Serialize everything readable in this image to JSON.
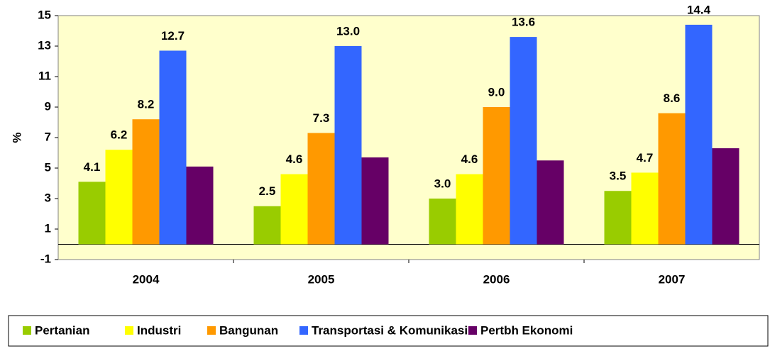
{
  "chart_data": {
    "type": "bar",
    "y_label": "%",
    "categories": [
      "2004",
      "2005",
      "2006",
      "2007"
    ],
    "series": [
      {
        "name": "Pertanian",
        "color": "#99cc00",
        "values": [
          4.1,
          2.5,
          3.0,
          3.5
        ],
        "value_labels": [
          "4.1",
          "2.5",
          "3.0",
          "3.5"
        ]
      },
      {
        "name": "Industri",
        "color": "#ffff00",
        "values": [
          6.2,
          4.6,
          4.6,
          4.7
        ],
        "value_labels": [
          "6.2",
          "4.6",
          "4.6",
          "4.7"
        ]
      },
      {
        "name": "Bangunan",
        "color": "#ff9900",
        "values": [
          8.2,
          7.3,
          9.0,
          8.6
        ],
        "value_labels": [
          "8.2",
          "7.3",
          "9.0",
          "8.6"
        ]
      },
      {
        "name": "Transportasi & Komunikasi",
        "color": "#3366ff",
        "values": [
          12.7,
          13.0,
          13.6,
          14.4
        ],
        "value_labels": [
          "12.7",
          "13.0",
          "13.6",
          "14.4"
        ]
      },
      {
        "name": "Pertbh Ekonomi",
        "color": "#660066",
        "values": [
          5.1,
          5.7,
          5.5,
          6.3
        ]
      }
    ],
    "ylim": [
      -1,
      15
    ],
    "yticks": [
      -1,
      1,
      3,
      5,
      7,
      9,
      11,
      13,
      15
    ],
    "grid": false,
    "legend": "bottom",
    "plot_background": "#ffffcc"
  }
}
